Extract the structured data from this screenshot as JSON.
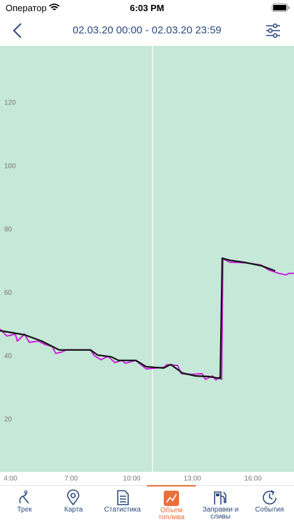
{
  "status_bar": {
    "carrier": "Оператор",
    "time": "6:03 PM"
  },
  "header": {
    "title": "02.03.20 00:00 - 02.03.20 23:59"
  },
  "chart_data": {
    "type": "line",
    "xlim": [
      3.48,
      18.03
    ],
    "ylim": [
      3.5,
      138
    ],
    "xticks": [
      {
        "value": 4,
        "label": "4:00"
      },
      {
        "value": 7,
        "label": "7:00"
      },
      {
        "value": 10,
        "label": "10:00"
      },
      {
        "value": 13,
        "label": "13:00"
      },
      {
        "value": 16,
        "label": "16:00"
      }
    ],
    "yticks": [
      20,
      40,
      60,
      80,
      100,
      120
    ],
    "cursor_x": 11.03,
    "background": "#c6e8d8",
    "series": [
      {
        "color": "#cc22dd",
        "x": [
          3.48,
          3.82,
          4.24,
          4.34,
          4.69,
          4.93,
          5.38,
          5.72,
          6.07,
          6.24,
          6.51,
          6.76,
          7.96,
          8.14,
          8.48,
          8.82,
          9.17,
          9.51,
          9.69,
          10.2,
          10.72,
          11.58,
          11.76,
          12.27,
          12.45,
          12.96,
          13.48,
          13.65,
          14.0,
          14.17,
          14.38,
          14.45,
          14.51,
          14.86,
          15.72,
          16.41,
          16.76,
          17.27,
          17.62,
          17.79,
          18.03
        ],
        "values": [
          48.6,
          46.4,
          47,
          44.8,
          47,
          44.4,
          44.8,
          43.7,
          43.1,
          40.9,
          41.3,
          42,
          42,
          40.2,
          38.9,
          40,
          38,
          38.7,
          37.8,
          38.7,
          36,
          36.5,
          37.4,
          37.1,
          34.5,
          34.3,
          34.5,
          32.7,
          33.8,
          32.5,
          33.6,
          32.7,
          70.8,
          69.7,
          69.5,
          68.8,
          67.3,
          66.2,
          65.7,
          66.2,
          66.2
        ]
      },
      {
        "color": "#111111",
        "x": [
          3.48,
          4.69,
          5.55,
          6.41,
          7.96,
          8.31,
          9.0,
          9.34,
          10.2,
          10.72,
          11.58,
          11.93,
          12.51,
          13.14,
          13.82,
          14.38,
          14.48,
          14.86,
          15.55,
          16.41,
          17.1
        ],
        "values": [
          48.1,
          46.8,
          44.8,
          42,
          42,
          40.4,
          39.8,
          38.7,
          38.7,
          36.7,
          36.3,
          37.4,
          34.7,
          33.8,
          33.6,
          33,
          71,
          70.3,
          69.7,
          68.6,
          67
        ]
      }
    ]
  },
  "tabs": [
    {
      "label": "Трек"
    },
    {
      "label": "Карта"
    },
    {
      "label": "Статистика"
    },
    {
      "label": "Объем топлива"
    },
    {
      "label": "Заправки и сливы"
    },
    {
      "label": "События"
    }
  ],
  "active_tab": 3
}
